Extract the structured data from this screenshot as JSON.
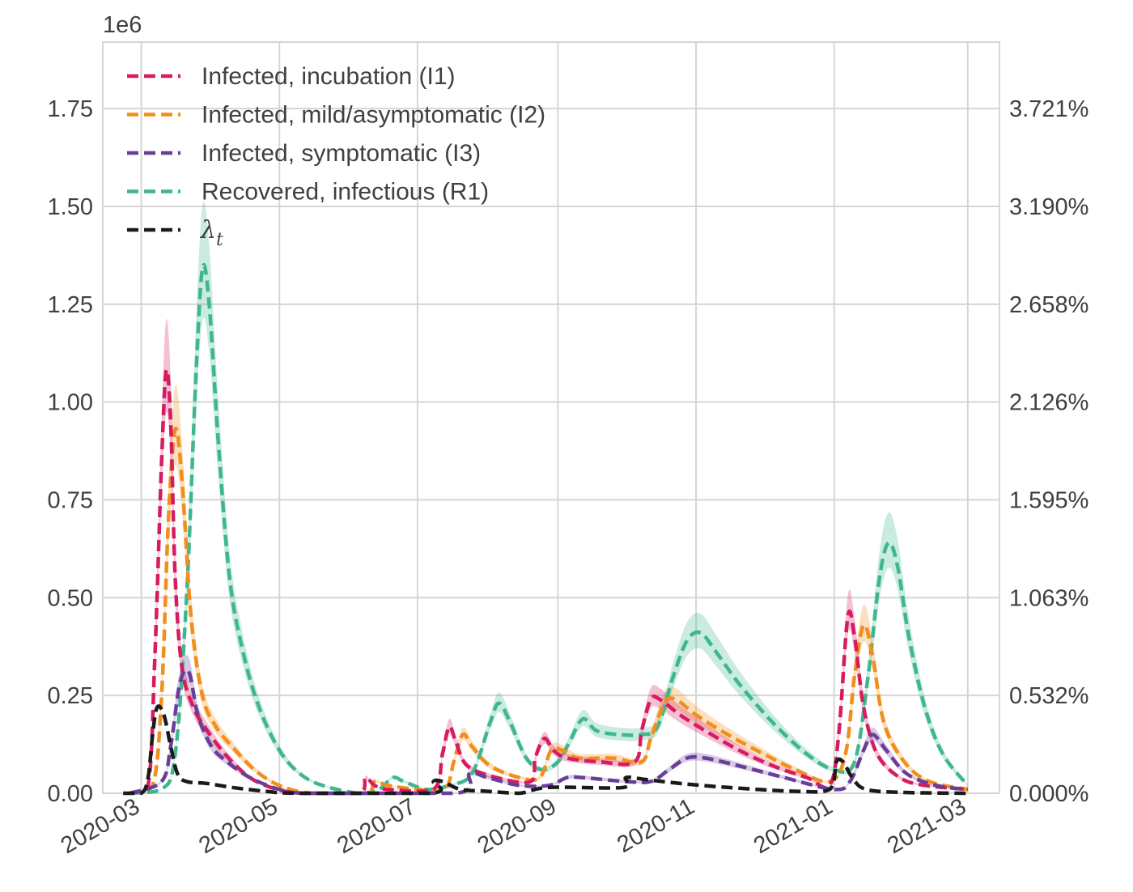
{
  "chart_data": {
    "type": "line",
    "offset_label": "1e6",
    "xlabel": "",
    "ylabel": "",
    "x_range": [
      "2020-02-13",
      "2021-03-15"
    ],
    "ylim": [
      0,
      1.92
    ],
    "y_ticks": [
      0.0,
      0.25,
      0.5,
      0.75,
      1.0,
      1.25,
      1.5,
      1.75
    ],
    "y_tick_labels": [
      "0.00",
      "0.25",
      "0.50",
      "0.75",
      "1.00",
      "1.25",
      "1.50",
      "1.75"
    ],
    "y2_tick_labels": [
      "0.000%",
      "0.532%",
      "1.063%",
      "1.595%",
      "2.126%",
      "2.658%",
      "3.190%",
      "3.721%"
    ],
    "x_ticks": [
      "2020-03-01",
      "2020-05-01",
      "2020-07-01",
      "2020-09-01",
      "2020-11-01",
      "2021-01-01",
      "2021-03-01"
    ],
    "x_tick_labels": [
      "2020-03",
      "2020-05",
      "2020-07",
      "2020-09",
      "2020-11",
      "2021-01",
      "2021-03"
    ],
    "grid": true,
    "legend_position": "upper-left",
    "line_style": "dashed",
    "series": [
      {
        "name": "Infected, incubation (I1)",
        "color": "#d81b60",
        "points": [
          [
            "2020-02-25",
            0
          ],
          [
            "2020-03-04",
            0.02
          ],
          [
            "2020-03-07",
            0.35
          ],
          [
            "2020-03-10",
            0.85
          ],
          [
            "2020-03-12",
            1.08
          ],
          [
            "2020-03-14",
            0.95
          ],
          [
            "2020-03-16",
            0.55
          ],
          [
            "2020-03-19",
            0.32
          ],
          [
            "2020-03-24",
            0.22
          ],
          [
            "2020-03-29",
            0.17
          ],
          [
            "2020-04-07",
            0.1
          ],
          [
            "2020-04-18",
            0.04
          ],
          [
            "2020-04-30",
            0.01
          ],
          [
            "2020-05-12",
            0
          ],
          [
            "2020-06-05",
            0
          ],
          [
            "2020-06-08",
            0.04
          ],
          [
            "2020-06-12",
            0.02
          ],
          [
            "2020-06-18",
            0.01
          ],
          [
            "2020-07-08",
            0.01
          ],
          [
            "2020-07-12",
            0.1
          ],
          [
            "2020-07-15",
            0.17
          ],
          [
            "2020-07-18",
            0.13
          ],
          [
            "2020-07-23",
            0.07
          ],
          [
            "2020-08-05",
            0.04
          ],
          [
            "2020-08-20",
            0.03
          ],
          [
            "2020-08-22",
            0.09
          ],
          [
            "2020-08-26",
            0.14
          ],
          [
            "2020-08-30",
            0.11
          ],
          [
            "2020-09-05",
            0.09
          ],
          [
            "2020-09-20",
            0.08
          ],
          [
            "2020-10-05",
            0.08
          ],
          [
            "2020-10-08",
            0.16
          ],
          [
            "2020-10-12",
            0.24
          ],
          [
            "2020-10-16",
            0.24
          ],
          [
            "2020-10-25",
            0.2
          ],
          [
            "2020-11-05",
            0.16
          ],
          [
            "2020-11-20",
            0.11
          ],
          [
            "2020-12-05",
            0.07
          ],
          [
            "2020-12-20",
            0.04
          ],
          [
            "2020-12-30",
            0.02
          ],
          [
            "2021-01-03",
            0.15
          ],
          [
            "2021-01-07",
            0.45
          ],
          [
            "2021-01-10",
            0.4
          ],
          [
            "2021-01-14",
            0.22
          ],
          [
            "2021-01-20",
            0.1
          ],
          [
            "2021-01-30",
            0.04
          ],
          [
            "2021-02-10",
            0.02
          ],
          [
            "2021-03-01",
            0.01
          ]
        ]
      },
      {
        "name": "Infected, mild/asymptomatic (I2)",
        "color": "#f28e1c",
        "points": [
          [
            "2020-02-25",
            0
          ],
          [
            "2020-03-06",
            0.02
          ],
          [
            "2020-03-10",
            0.25
          ],
          [
            "2020-03-13",
            0.7
          ],
          [
            "2020-03-16",
            0.93
          ],
          [
            "2020-03-19",
            0.8
          ],
          [
            "2020-03-23",
            0.45
          ],
          [
            "2020-03-28",
            0.25
          ],
          [
            "2020-04-03",
            0.17
          ],
          [
            "2020-04-10",
            0.12
          ],
          [
            "2020-04-20",
            0.06
          ],
          [
            "2020-05-01",
            0.02
          ],
          [
            "2020-05-15",
            0
          ],
          [
            "2020-06-08",
            0
          ],
          [
            "2020-06-12",
            0.03
          ],
          [
            "2020-06-18",
            0.02
          ],
          [
            "2020-07-01",
            0.01
          ],
          [
            "2020-07-13",
            0.01
          ],
          [
            "2020-07-17",
            0.08
          ],
          [
            "2020-07-21",
            0.15
          ],
          [
            "2020-07-25",
            0.12
          ],
          [
            "2020-08-02",
            0.07
          ],
          [
            "2020-08-15",
            0.04
          ],
          [
            "2020-08-24",
            0.04
          ],
          [
            "2020-08-29",
            0.11
          ],
          [
            "2020-09-03",
            0.11
          ],
          [
            "2020-09-10",
            0.09
          ],
          [
            "2020-09-25",
            0.09
          ],
          [
            "2020-10-08",
            0.08
          ],
          [
            "2020-10-12",
            0.14
          ],
          [
            "2020-10-18",
            0.23
          ],
          [
            "2020-10-23",
            0.24
          ],
          [
            "2020-11-01",
            0.2
          ],
          [
            "2020-11-15",
            0.15
          ],
          [
            "2020-12-01",
            0.1
          ],
          [
            "2020-12-15",
            0.06
          ],
          [
            "2020-12-30",
            0.03
          ],
          [
            "2021-01-06",
            0.1
          ],
          [
            "2021-01-10",
            0.3
          ],
          [
            "2021-01-14",
            0.43
          ],
          [
            "2021-01-18",
            0.35
          ],
          [
            "2021-01-23",
            0.18
          ],
          [
            "2021-02-01",
            0.08
          ],
          [
            "2021-02-12",
            0.03
          ],
          [
            "2021-03-01",
            0.01
          ]
        ]
      },
      {
        "name": "Infected, symptomatic (I3)",
        "color": "#6a3d9a",
        "points": [
          [
            "2020-02-25",
            0
          ],
          [
            "2020-03-10",
            0.03
          ],
          [
            "2020-03-14",
            0.12
          ],
          [
            "2020-03-18",
            0.28
          ],
          [
            "2020-03-22",
            0.31
          ],
          [
            "2020-03-26",
            0.2
          ],
          [
            "2020-04-01",
            0.12
          ],
          [
            "2020-04-08",
            0.08
          ],
          [
            "2020-04-18",
            0.04
          ],
          [
            "2020-05-01",
            0.01
          ],
          [
            "2020-05-15",
            0
          ],
          [
            "2020-07-18",
            0
          ],
          [
            "2020-07-24",
            0.05
          ],
          [
            "2020-08-01",
            0.04
          ],
          [
            "2020-08-15",
            0.02
          ],
          [
            "2020-08-28",
            0.02
          ],
          [
            "2020-09-05",
            0.04
          ],
          [
            "2020-09-12",
            0.04
          ],
          [
            "2020-10-01",
            0.03
          ],
          [
            "2020-10-12",
            0.03
          ],
          [
            "2020-10-20",
            0.06
          ],
          [
            "2020-10-28",
            0.09
          ],
          [
            "2020-11-05",
            0.09
          ],
          [
            "2020-11-20",
            0.07
          ],
          [
            "2020-12-10",
            0.04
          ],
          [
            "2021-01-01",
            0.01
          ],
          [
            "2021-01-08",
            0.03
          ],
          [
            "2021-01-14",
            0.11
          ],
          [
            "2021-01-18",
            0.15
          ],
          [
            "2021-01-24",
            0.11
          ],
          [
            "2021-02-02",
            0.05
          ],
          [
            "2021-02-15",
            0.02
          ],
          [
            "2021-03-01",
            0.01
          ]
        ]
      },
      {
        "name": "Recovered, infectious (R1)",
        "color": "#3fb68e",
        "points": [
          [
            "2020-02-25",
            0
          ],
          [
            "2020-03-10",
            0.01
          ],
          [
            "2020-03-16",
            0.1
          ],
          [
            "2020-03-21",
            0.5
          ],
          [
            "2020-03-25",
            1.05
          ],
          [
            "2020-03-28",
            1.34
          ],
          [
            "2020-03-31",
            1.25
          ],
          [
            "2020-04-04",
            0.9
          ],
          [
            "2020-04-09",
            0.55
          ],
          [
            "2020-04-15",
            0.36
          ],
          [
            "2020-04-22",
            0.22
          ],
          [
            "2020-05-01",
            0.11
          ],
          [
            "2020-05-10",
            0.05
          ],
          [
            "2020-05-20",
            0.02
          ],
          [
            "2020-06-05",
            0
          ],
          [
            "2020-06-14",
            0.01
          ],
          [
            "2020-06-20",
            0.04
          ],
          [
            "2020-06-25",
            0.03
          ],
          [
            "2020-07-05",
            0.01
          ],
          [
            "2020-07-15",
            0.02
          ],
          [
            "2020-07-25",
            0.05
          ],
          [
            "2020-08-02",
            0.18
          ],
          [
            "2020-08-06",
            0.23
          ],
          [
            "2020-08-11",
            0.18
          ],
          [
            "2020-08-18",
            0.09
          ],
          [
            "2020-08-25",
            0.06
          ],
          [
            "2020-09-01",
            0.08
          ],
          [
            "2020-09-06",
            0.13
          ],
          [
            "2020-09-12",
            0.19
          ],
          [
            "2020-09-18",
            0.16
          ],
          [
            "2020-09-28",
            0.15
          ],
          [
            "2020-10-08",
            0.15
          ],
          [
            "2020-10-15",
            0.17
          ],
          [
            "2020-10-22",
            0.3
          ],
          [
            "2020-10-28",
            0.39
          ],
          [
            "2020-11-03",
            0.41
          ],
          [
            "2020-11-10",
            0.36
          ],
          [
            "2020-11-20",
            0.28
          ],
          [
            "2020-12-05",
            0.18
          ],
          [
            "2020-12-20",
            0.1
          ],
          [
            "2021-01-01",
            0.06
          ],
          [
            "2021-01-10",
            0.08
          ],
          [
            "2021-01-16",
            0.3
          ],
          [
            "2021-01-21",
            0.55
          ],
          [
            "2021-01-25",
            0.64
          ],
          [
            "2021-01-29",
            0.58
          ],
          [
            "2021-02-03",
            0.4
          ],
          [
            "2021-02-10",
            0.22
          ],
          [
            "2021-02-18",
            0.1
          ],
          [
            "2021-03-01",
            0.02
          ]
        ]
      },
      {
        "name": "λt",
        "color": "#1a1a1a",
        "points": [
          [
            "2020-02-22",
            0
          ],
          [
            "2020-03-01",
            0
          ],
          [
            "2020-03-04",
            0.04
          ],
          [
            "2020-03-06",
            0.15
          ],
          [
            "2020-03-08",
            0.22
          ],
          [
            "2020-03-11",
            0.2
          ],
          [
            "2020-03-14",
            0.12
          ],
          [
            "2020-03-17",
            0.05
          ],
          [
            "2020-03-21",
            0.03
          ],
          [
            "2020-03-30",
            0.025
          ],
          [
            "2020-04-10",
            0.015
          ],
          [
            "2020-04-25",
            0.005
          ],
          [
            "2020-05-10",
            0
          ],
          [
            "2020-07-07",
            0
          ],
          [
            "2020-07-08",
            0.03
          ],
          [
            "2020-07-12",
            0.03
          ],
          [
            "2020-07-20",
            0.01
          ],
          [
            "2020-08-01",
            0.005
          ],
          [
            "2020-08-15",
            0
          ],
          [
            "2020-08-28",
            0.015
          ],
          [
            "2020-09-30",
            0.015
          ],
          [
            "2020-10-01",
            0.04
          ],
          [
            "2020-10-10",
            0.035
          ],
          [
            "2020-10-25",
            0.025
          ],
          [
            "2020-11-15",
            0.015
          ],
          [
            "2020-12-15",
            0.005
          ],
          [
            "2020-12-30",
            0.01
          ],
          [
            "2021-01-02",
            0.08
          ],
          [
            "2021-01-05",
            0.08
          ],
          [
            "2021-01-09",
            0.04
          ],
          [
            "2021-01-15",
            0.01
          ],
          [
            "2021-02-01",
            0.002
          ],
          [
            "2021-03-01",
            0
          ]
        ]
      }
    ]
  }
}
